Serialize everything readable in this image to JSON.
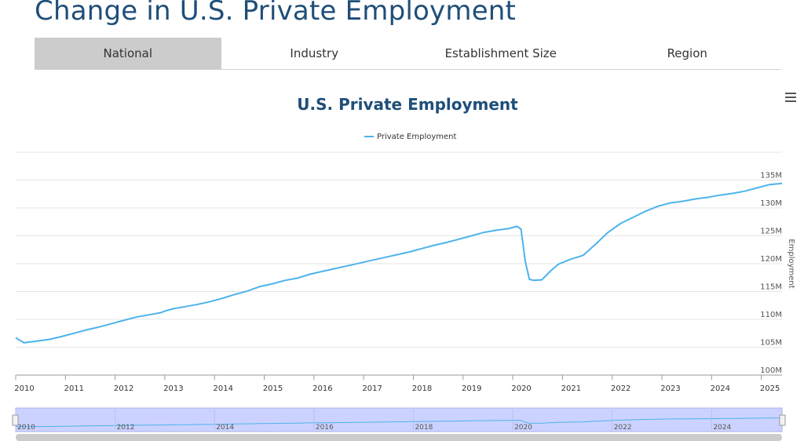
{
  "page": {
    "title": "Change in U.S. Private Employment"
  },
  "tabs": [
    {
      "label": "National",
      "active": true
    },
    {
      "label": "Industry",
      "active": false
    },
    {
      "label": "Establishment Size",
      "active": false
    },
    {
      "label": "Region",
      "active": false
    }
  ],
  "menu": {
    "icon": "hamburger-menu-icon"
  },
  "colors": {
    "line": "#4db3ec",
    "title": "#1f4e79",
    "navigator_bg": "#ccd2ff",
    "tab_active": "#cccccc"
  },
  "chart_data": {
    "type": "line",
    "title": "U.S. Private Employment",
    "ylabel": "Employment",
    "xlabel": "",
    "legend": {
      "position": "top-center",
      "items": [
        "Private Employment"
      ]
    },
    "grid": true,
    "x_range": [
      "2010-01",
      "2025-06"
    ],
    "ylim": [
      100,
      140
    ],
    "x_tick_labels": [
      "2010",
      "2011",
      "2012",
      "2013",
      "2014",
      "2015",
      "2016",
      "2017",
      "2018",
      "2019",
      "2020",
      "2021",
      "2022",
      "2023",
      "2024",
      "2025"
    ],
    "y_tick_values": [
      100,
      105,
      110,
      115,
      120,
      125,
      130,
      135
    ],
    "y_tick_labels": [
      "100M",
      "105M",
      "110M",
      "115M",
      "120M",
      "125M",
      "130M",
      "135M"
    ],
    "navigator_tick_labels": [
      "2010",
      "2012",
      "2014",
      "2016",
      "2018",
      "2020",
      "2022",
      "2024"
    ],
    "series": [
      {
        "name": "Private Employment",
        "points": [
          [
            "2010-01",
            106.7
          ],
          [
            "2010-03",
            105.8
          ],
          [
            "2010-06",
            106.1
          ],
          [
            "2010-09",
            106.4
          ],
          [
            "2010-12",
            106.9
          ],
          [
            "2011-03",
            107.5
          ],
          [
            "2011-06",
            108.1
          ],
          [
            "2011-09",
            108.6
          ],
          [
            "2011-12",
            109.2
          ],
          [
            "2012-03",
            109.8
          ],
          [
            "2012-06",
            110.4
          ],
          [
            "2012-09",
            110.8
          ],
          [
            "2012-12",
            111.2
          ],
          [
            "2013-01",
            111.5
          ],
          [
            "2013-03",
            111.9
          ],
          [
            "2013-06",
            112.3
          ],
          [
            "2013-09",
            112.7
          ],
          [
            "2013-12",
            113.2
          ],
          [
            "2014-03",
            113.8
          ],
          [
            "2014-06",
            114.5
          ],
          [
            "2014-09",
            115.1
          ],
          [
            "2014-12",
            115.9
          ],
          [
            "2015-03",
            116.4
          ],
          [
            "2015-06",
            117.0
          ],
          [
            "2015-09",
            117.4
          ],
          [
            "2015-12",
            118.1
          ],
          [
            "2016-03",
            118.6
          ],
          [
            "2016-06",
            119.1
          ],
          [
            "2016-09",
            119.6
          ],
          [
            "2016-12",
            120.1
          ],
          [
            "2017-03",
            120.6
          ],
          [
            "2017-06",
            121.1
          ],
          [
            "2017-09",
            121.6
          ],
          [
            "2017-12",
            122.1
          ],
          [
            "2018-03",
            122.7
          ],
          [
            "2018-06",
            123.3
          ],
          [
            "2018-09",
            123.8
          ],
          [
            "2018-12",
            124.4
          ],
          [
            "2019-03",
            125.0
          ],
          [
            "2019-06",
            125.6
          ],
          [
            "2019-09",
            126.0
          ],
          [
            "2019-12",
            126.3
          ],
          [
            "2020-01",
            126.5
          ],
          [
            "2020-02",
            126.7
          ],
          [
            "2020-03",
            126.2
          ],
          [
            "2020-04",
            120.5
          ],
          [
            "2020-05",
            117.2
          ],
          [
            "2020-06",
            117.0
          ],
          [
            "2020-08",
            117.1
          ],
          [
            "2020-10",
            118.6
          ],
          [
            "2020-12",
            119.9
          ],
          [
            "2021-03",
            120.8
          ],
          [
            "2021-06",
            121.5
          ],
          [
            "2021-09",
            123.5
          ],
          [
            "2021-12",
            125.6
          ],
          [
            "2022-03",
            127.2
          ],
          [
            "2022-06",
            128.3
          ],
          [
            "2022-09",
            129.4
          ],
          [
            "2022-12",
            130.3
          ],
          [
            "2023-03",
            130.9
          ],
          [
            "2023-06",
            131.2
          ],
          [
            "2023-09",
            131.6
          ],
          [
            "2023-12",
            131.9
          ],
          [
            "2024-03",
            132.3
          ],
          [
            "2024-06",
            132.6
          ],
          [
            "2024-09",
            133.0
          ],
          [
            "2024-12",
            133.6
          ],
          [
            "2025-03",
            134.2
          ],
          [
            "2025-06",
            134.4
          ]
        ]
      }
    ]
  }
}
